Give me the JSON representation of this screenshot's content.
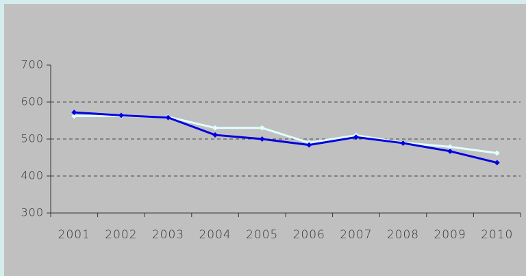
{
  "chart_data": {
    "type": "line",
    "categories": [
      "2001",
      "2002",
      "2003",
      "2004",
      "2005",
      "2006",
      "2007",
      "2008",
      "2009",
      "2010"
    ],
    "series": [
      {
        "color": "#e0ffff",
        "values": [
          562,
          562,
          560,
          530,
          530,
          490,
          510,
          490,
          479,
          462
        ]
      },
      {
        "color": "#0000e0",
        "values": [
          572,
          564,
          558,
          511,
          500,
          484,
          505,
          489,
          467,
          436
        ]
      }
    ],
    "ylim": [
      300,
      700
    ],
    "yticks": [
      300,
      400,
      500,
      600,
      700
    ],
    "grid": true
  }
}
